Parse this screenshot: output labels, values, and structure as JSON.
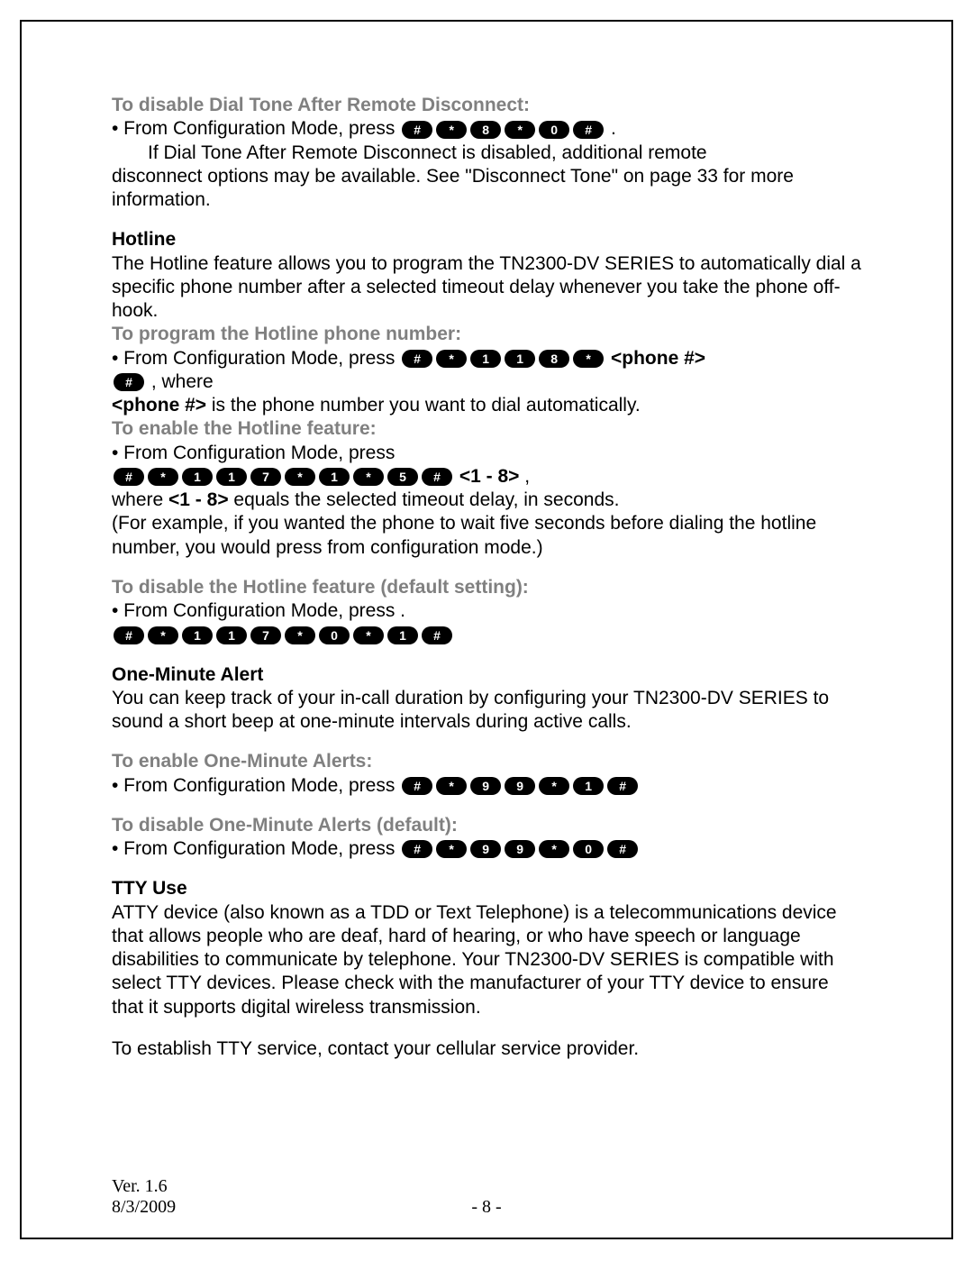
{
  "s1": {
    "heading": "To disable Dial Tone After Remote Disconnect:",
    "bullet_prefix": "• From Configuration Mode, press",
    "keys": [
      "#",
      "*",
      "8",
      "*",
      "0",
      "#"
    ],
    "period": ".",
    "indent_text": "If Dial Tone After Remote Disconnect is disabled, additional remote",
    "cont": "disconnect options may be available. See \"Disconnect Tone\" on page 33 for more information."
  },
  "s2": {
    "heading": "Hotline",
    "desc": "The Hotline feature allows you to program the TN2300-DV SERIES to automatically dial a specific phone number after a selected timeout delay whenever you take the phone off-hook.",
    "sub1": "To program the Hotline phone number:",
    "bullet1": "• From Configuration Mode, press ",
    "keys1": [
      "#",
      "*",
      "1",
      "1",
      "8",
      "*"
    ],
    "phone_var": "<phone #>",
    "key_trail": [
      "#"
    ],
    "where": " , where",
    "phone_desc_label": "<phone #>",
    "phone_desc": " is the phone number you want to dial automatically.",
    "sub2": "To enable the Hotline feature:",
    "bullet2": "• From Configuration Mode, press",
    "keys2": [
      "#",
      "*",
      "1",
      "1",
      "7",
      "*",
      "1",
      "*",
      "5",
      "#"
    ],
    "range": "<1 - 8>",
    "range_comma": " ,",
    "where_line": "where ",
    "range2": "<1 - 8>",
    "where_cont": " equals the selected timeout delay, in seconds.",
    "example": "(For example, if you wanted the phone to wait five seconds before dialing the hotline number, you would press from configuration mode.)",
    "sub3": "To disable the Hotline feature (default setting):",
    "bullet3": "• From Configuration Mode, press .",
    "keys3": [
      "#",
      "*",
      "1",
      "1",
      "7",
      "*",
      "0",
      "*",
      "1",
      "#"
    ]
  },
  "s3": {
    "heading": "One-Minute Alert",
    "desc": "You can keep track of your in-call duration by configuring your TN2300-DV SERIES to sound a short beep at one-minute intervals during active calls.",
    "sub1": "To enable One-Minute Alerts:",
    "bullet1": "• From Configuration Mode, press ",
    "keys1": [
      "#",
      "*",
      "9",
      "9",
      "*",
      "1",
      "#"
    ],
    "sub2": "To disable One-Minute Alerts (default):",
    "bullet2": "• From Configuration Mode, press ",
    "keys2": [
      "#",
      "*",
      "9",
      "9",
      "*",
      "0",
      "#"
    ]
  },
  "s4": {
    "heading": "TTY Use",
    "p1": "ATTY device (also known as a TDD or Text Telephone) is a telecommunications device that allows people who are deaf, hard of hearing, or who have speech or language disabilities to communicate by telephone. Your TN2300-DV SERIES is compatible with select TTY devices. Please check with the manufacturer of your TTY device to ensure that it supports digital wireless transmission.",
    "p2": "To establish TTY service, contact your cellular service provider."
  },
  "footer": {
    "ver": "Ver. 1.6",
    "date": "8/3/2009",
    "page": "- 8 -"
  }
}
